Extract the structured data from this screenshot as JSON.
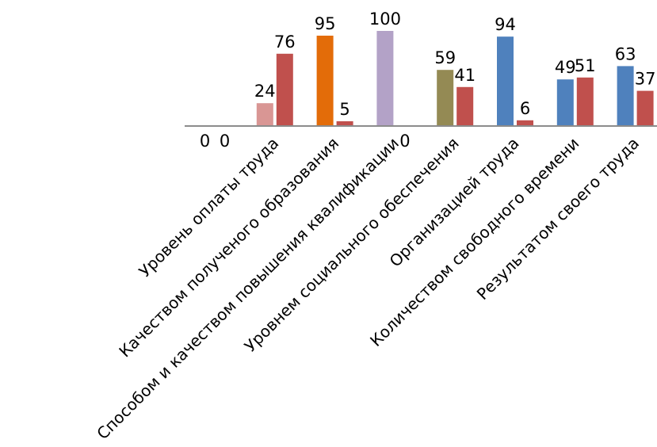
{
  "chart_data": {
    "type": "bar",
    "categories": [
      null,
      "Уровень оплаты труда",
      "Качеством полученого образования",
      "Способом и качеством повышения квалификации",
      "Уровнем социального обеспечения",
      "Организацией труда",
      "Количеством свободного времени",
      "Результатом своего труда"
    ],
    "series": [
      {
        "colors": [
          "#4f81bd",
          "#d99694",
          "#e36c09",
          "#b3a2c7",
          "#948a54",
          "#4f81bd",
          "#4f81bd",
          "#4f81bd"
        ],
        "values": [
          0,
          24,
          95,
          100,
          59,
          94,
          49,
          63
        ]
      },
      {
        "colors": [
          "#c0504d",
          "#c0504d",
          "#c0504d",
          "#c0504d",
          "#c0504d",
          "#c0504d",
          "#c0504d",
          "#c0504d"
        ],
        "values": [
          0,
          76,
          5,
          0,
          41,
          6,
          51,
          37
        ]
      }
    ],
    "ylim": [
      0,
      100
    ]
  }
}
